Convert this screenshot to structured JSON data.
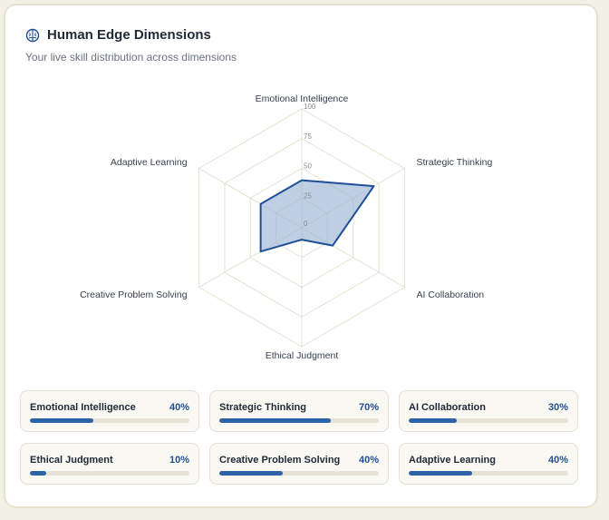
{
  "header": {
    "title": "Human Edge Dimensions",
    "subtitle": "Your live skill distribution across dimensions"
  },
  "chart_data": {
    "type": "radar",
    "axes": [
      "Emotional Intelligence",
      "Strategic Thinking",
      "AI Collaboration",
      "Ethical Judgment",
      "Creative Problem Solving",
      "Adaptive Learning"
    ],
    "values": [
      40,
      70,
      30,
      10,
      40,
      40
    ],
    "scale_ticks": [
      0,
      25,
      50,
      75,
      100
    ],
    "range": [
      0,
      100
    ],
    "grid": true,
    "colors": {
      "fill": "#9bb6d6",
      "stroke": "#1e4f96",
      "grid": "#e6e0d1"
    }
  },
  "metrics": [
    {
      "label": "Emotional Intelligence",
      "value": 40,
      "display": "40%"
    },
    {
      "label": "Strategic Thinking",
      "value": 70,
      "display": "70%"
    },
    {
      "label": "AI Collaboration",
      "value": 30,
      "display": "30%"
    },
    {
      "label": "Ethical Judgment",
      "value": 10,
      "display": "10%"
    },
    {
      "label": "Creative Problem Solving",
      "value": 40,
      "display": "40%"
    },
    {
      "label": "Adaptive Learning",
      "value": 40,
      "display": "40%"
    }
  ]
}
